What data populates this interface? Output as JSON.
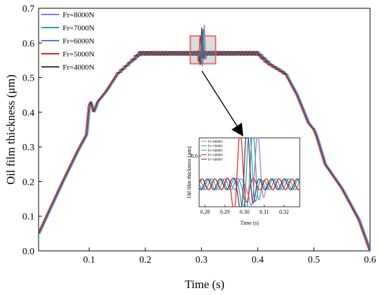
{
  "chart_data": {
    "type": "line",
    "xlabel": "Time (s)",
    "ylabel": "Oil film thickness (μm)",
    "xlim": [
      0.01,
      0.6
    ],
    "ylim": [
      0.0,
      0.7
    ],
    "x_ticks": [
      "0.1",
      "0.2",
      "0.3",
      "0.4",
      "0.5",
      "0.6"
    ],
    "y_ticks": [
      "0.0",
      "0.1",
      "0.2",
      "0.3",
      "0.4",
      "0.5",
      "0.6",
      "0.7"
    ],
    "grid": false,
    "legend_position": "top-left",
    "series": [
      {
        "name": "Fr=8000N",
        "color": "#9b6fd6",
        "time_offset": 0.0045,
        "peak": 0.62,
        "dip": 0.49
      },
      {
        "name": "Fr=7000N",
        "color": "#2ca58d",
        "time_offset": 0.0025,
        "peak": 0.612,
        "dip": 0.5
      },
      {
        "name": "Fr=6000N",
        "color": "#4a7fd6",
        "time_offset": 0.001,
        "peak": 0.608,
        "dip": 0.51
      },
      {
        "name": "Fr=5000N",
        "color": "#e0201b",
        "time_offset": -0.003,
        "peak": 0.6,
        "dip": 0.52
      },
      {
        "name": "Fr=4000N",
        "color": "#3a3a3a",
        "time_offset": 0.0,
        "peak": 0.615,
        "dip": 0.5
      }
    ],
    "base_profile": {
      "x": [
        0.01,
        0.05,
        0.08,
        0.095,
        0.1,
        0.103,
        0.108,
        0.115,
        0.13,
        0.15,
        0.17,
        0.19,
        0.4,
        0.42,
        0.45,
        0.47,
        0.49,
        0.495,
        0.5,
        0.505,
        0.52,
        0.55,
        0.58,
        0.6
      ],
      "y": [
        0.05,
        0.19,
        0.29,
        0.335,
        0.42,
        0.43,
        0.4,
        0.43,
        0.46,
        0.51,
        0.54,
        0.57,
        0.57,
        0.54,
        0.51,
        0.45,
        0.37,
        0.36,
        0.35,
        0.33,
        0.25,
        0.18,
        0.09,
        0.0
      ]
    },
    "zoom_box": {
      "x_range": [
        0.28,
        0.325
      ],
      "y_range": [
        0.54,
        0.62
      ]
    },
    "inset": {
      "xlabel": "Time (s)",
      "ylabel": "Oil film thickness (μm)",
      "xlim": [
        0.277,
        0.328
      ],
      "ylim": [
        0.43,
        0.66
      ],
      "x_ticks": [
        "0.28",
        "0.29",
        "0.30",
        "0.31",
        "0.32"
      ],
      "y_ticks": [
        "0.6"
      ]
    }
  }
}
